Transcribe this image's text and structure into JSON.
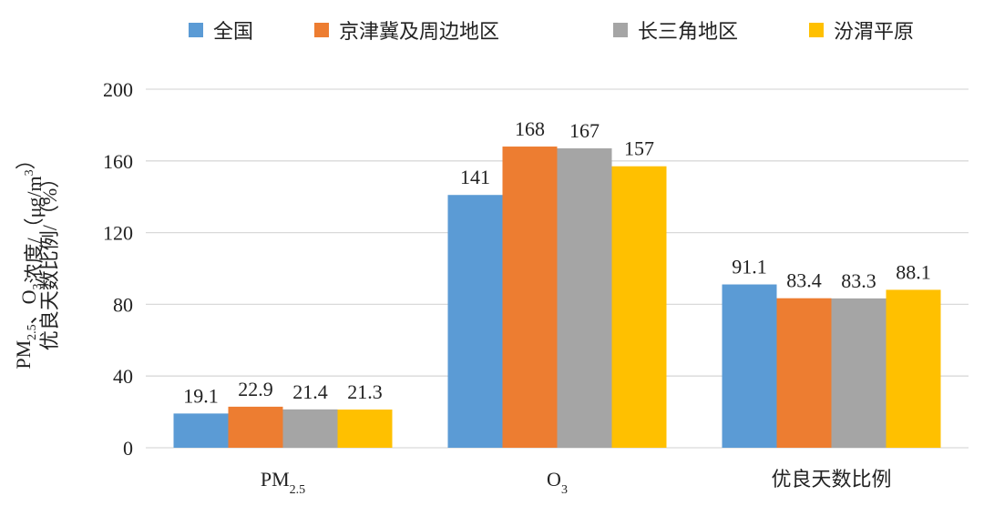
{
  "chart_data": {
    "type": "bar",
    "categories": [
      {
        "main": "PM",
        "sub": "2.5",
        "rest": ""
      },
      {
        "main": "O",
        "sub": "3",
        "rest": ""
      },
      {
        "main": "优良天数比例",
        "sub": "",
        "rest": ""
      }
    ],
    "series": [
      {
        "name": "全国",
        "color": "#5B9BD5",
        "values": [
          19.1,
          141,
          91.1
        ],
        "labels": [
          "19.1",
          "141",
          "91.1"
        ]
      },
      {
        "name": "京津冀及周边地区",
        "color": "#ED7D31",
        "values": [
          22.9,
          168,
          83.4
        ],
        "labels": [
          "22.9",
          "168",
          "83.4"
        ]
      },
      {
        "name": "长三角地区",
        "color": "#A5A5A5",
        "values": [
          21.4,
          167,
          83.3
        ],
        "labels": [
          "21.4",
          "167",
          "83.3"
        ]
      },
      {
        "name": "汾渭平原",
        "color": "#FFC000",
        "values": [
          21.3,
          157,
          88.1
        ],
        "labels": [
          "21.3",
          "157",
          "88.1"
        ]
      }
    ],
    "yticks": [
      "0",
      "40",
      "80",
      "120",
      "160",
      "200"
    ],
    "ylim": [
      0,
      200
    ],
    "ylabel_line1": [
      {
        "t": "PM"
      },
      {
        "t": "2.5",
        "sub": true
      },
      {
        "t": "、O"
      },
      {
        "t": "3",
        "sub": true
      },
      {
        "t": "浓度/（μg/m"
      },
      {
        "t": "3",
        "sup": true
      },
      {
        "t": "）"
      }
    ],
    "ylabel_line2": "优良天数比例/（%）",
    "grid": true,
    "legend_position": "top"
  }
}
